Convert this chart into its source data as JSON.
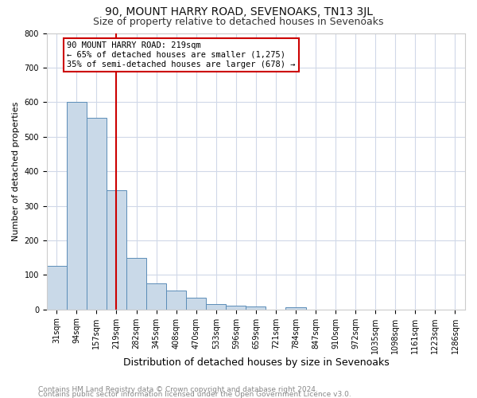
{
  "title": "90, MOUNT HARRY ROAD, SEVENOAKS, TN13 3JL",
  "subtitle": "Size of property relative to detached houses in Sevenoaks",
  "xlabel": "Distribution of detached houses by size in Sevenoaks",
  "ylabel": "Number of detached properties",
  "footer_line1": "Contains HM Land Registry data © Crown copyright and database right 2024.",
  "footer_line2": "Contains public sector information licensed under the Open Government Licence v3.0.",
  "bar_labels": [
    "31sqm",
    "94sqm",
    "157sqm",
    "219sqm",
    "282sqm",
    "345sqm",
    "408sqm",
    "470sqm",
    "533sqm",
    "596sqm",
    "659sqm",
    "721sqm",
    "784sqm",
    "847sqm",
    "910sqm",
    "972sqm",
    "1035sqm",
    "1098sqm",
    "1161sqm",
    "1223sqm",
    "1286sqm"
  ],
  "bar_values": [
    125,
    600,
    555,
    345,
    150,
    75,
    55,
    35,
    15,
    12,
    8,
    0,
    7,
    0,
    0,
    0,
    0,
    0,
    0,
    0,
    0
  ],
  "bar_color": "#c9d9e8",
  "bar_edge_color": "#5b8db8",
  "red_line_index": 3,
  "annotation_text": "90 MOUNT HARRY ROAD: 219sqm\n← 65% of detached houses are smaller (1,275)\n35% of semi-detached houses are larger (678) →",
  "annotation_box_color": "#ffffff",
  "annotation_box_edge_color": "#cc0000",
  "red_line_color": "#cc0000",
  "ylim": [
    0,
    800
  ],
  "yticks": [
    0,
    100,
    200,
    300,
    400,
    500,
    600,
    700,
    800
  ],
  "background_color": "#ffffff",
  "grid_color": "#d0d8e8",
  "title_fontsize": 10,
  "subtitle_fontsize": 9,
  "xlabel_fontsize": 9,
  "ylabel_fontsize": 8,
  "tick_fontsize": 7,
  "annotation_fontsize": 7.5,
  "footer_fontsize": 6.5
}
